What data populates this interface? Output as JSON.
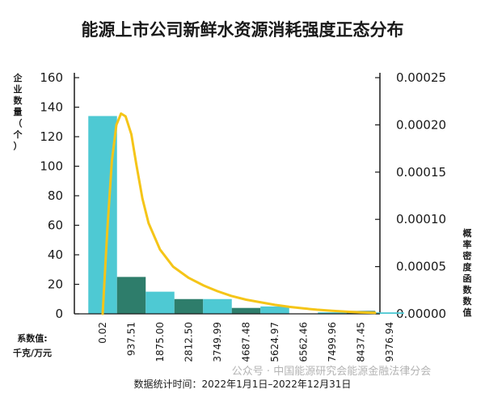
{
  "chart_data": {
    "type": "bar",
    "title": "能源上市公司新鲜水资源消耗强度正态分布",
    "ylabel": "企业数量（个）",
    "ylabel2": "概率密度函数数值",
    "xlabel": "系数值:千克/万元",
    "x_tick_labels": [
      "0.02",
      "937.51",
      "1875.00",
      "2812.50",
      "3749.99",
      "4687.48",
      "5624.97",
      "6562.46",
      "7499.96",
      "8437.45",
      "9376.94"
    ],
    "values": [
      134,
      25,
      15,
      10,
      10,
      4,
      5,
      0,
      1,
      2,
      1
    ],
    "bar_colors": [
      "#4ec9d3",
      "#2e7d6b",
      "#4ec9d3",
      "#2e7d6b",
      "#4ec9d3",
      "#2e7d6b",
      "#4ec9d3",
      "#2e7d6b",
      "#4ec9d3",
      "#2e7d6b",
      "#4ec9d3"
    ],
    "ylim": [
      0,
      160
    ],
    "yticks": [
      0,
      20,
      40,
      60,
      80,
      100,
      120,
      140,
      160
    ],
    "y2lim": [
      0,
      0.00025
    ],
    "y2tick_labels": [
      "0.00000",
      "0.00005",
      "0.00010",
      "0.00015",
      "0.00020",
      "0.00025"
    ],
    "density_curve": {
      "color": "#f5c518",
      "x": [
        0,
        150,
        300,
        450,
        600,
        750,
        937.51,
        1100,
        1300,
        1500,
        1875,
        2300,
        2812.5,
        3300,
        3749.99,
        4200,
        4687.48,
        5200,
        5624.97,
        6100,
        6562.46,
        7000,
        7499.96,
        8000,
        8437.45,
        8900
      ],
      "y": [
        0,
        8.8e-05,
        0.000162,
        0.0002,
        0.000212,
        0.000209,
        0.00019,
        0.000158,
        0.000122,
        9.6e-05,
        6.8e-05,
        5e-05,
        3.8e-05,
        3e-05,
        2.4e-05,
        1.9e-05,
        1.5e-05,
        1.2e-05,
        9.5e-06,
        7.4e-06,
        5.7e-06,
        4.4e-06,
        3.2e-06,
        2.2e-06,
        1.5e-06,
        1e-06
      ]
    },
    "grid": false
  },
  "footer": {
    "stat_time": "数据统计时间：2022年1月1日–2022年12月31日",
    "watermark": "公众号 · 中国能源研究会能源金融法律分会"
  },
  "colors": {
    "teal": "#4ec9d3",
    "dark_green": "#2e7d6b",
    "curve": "#f5c518",
    "axis": "#1a1a1a"
  }
}
